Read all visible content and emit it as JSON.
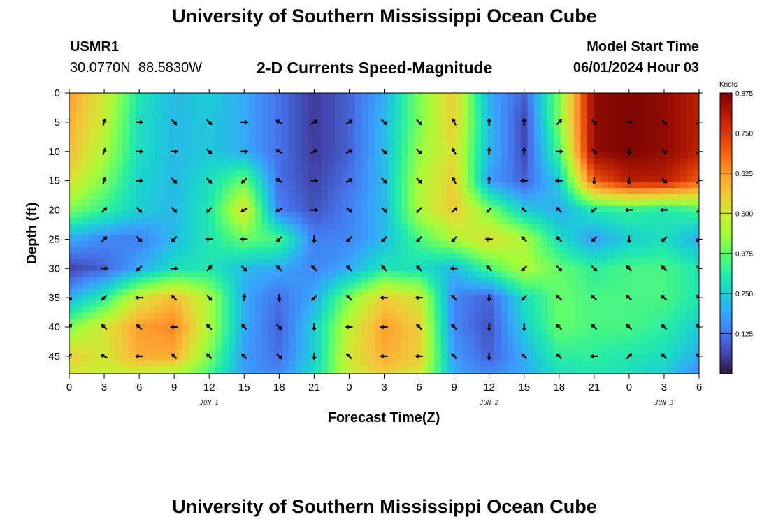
{
  "header": {
    "title": "University of Southern Mississippi Ocean Cube",
    "station_id": "USMR1",
    "coordinates": "30.0770N  88.5830W",
    "subtitle": "2-D Currents Speed-Magnitude",
    "model_start_label": "Model Start Time",
    "model_start_value": "06/01/2024 Hour 03"
  },
  "footer": {
    "title": "University of Southern Mississippi Ocean Cube"
  },
  "chart_data": {
    "type": "heatmap",
    "title": "2-D Currents Speed-Magnitude",
    "xlabel": "Forecast Time(Z)",
    "ylabel": "Depth (ft)",
    "x_range_hours": [
      0,
      54
    ],
    "y_range_ft": [
      0,
      48
    ],
    "x_tick_labels": [
      "0",
      "3",
      "6",
      "9",
      "12",
      "15",
      "18",
      "21",
      "0",
      "3",
      "6",
      "9",
      "12",
      "15",
      "18",
      "21",
      "0",
      "3",
      "6"
    ],
    "y_tick_labels": [
      "0",
      "5",
      "10",
      "15",
      "20",
      "25",
      "30",
      "35",
      "40",
      "45"
    ],
    "y_ticks": [
      0,
      5,
      10,
      15,
      20,
      25,
      30,
      35,
      40,
      45
    ],
    "date_labels": [
      {
        "text": "JUN 1",
        "hour": 12
      },
      {
        "text": "JUN 2",
        "hour": 36
      },
      {
        "text": "JUN 3",
        "hour": 51
      }
    ],
    "colorbar": {
      "unit": "Knots",
      "min": 0,
      "max": 0.875,
      "tick_labels": [
        "0.125",
        "0.250",
        "0.375",
        "0.500",
        "0.625",
        "0.750",
        "0.875"
      ],
      "tick_values": [
        0.125,
        0.25,
        0.375,
        0.5,
        0.625,
        0.75,
        0.875
      ],
      "colormap": [
        "#30123b",
        "#4145ab",
        "#4675ed",
        "#39a2fc",
        "#1bcfd4",
        "#24eca6",
        "#61fc6c",
        "#a4fc3b",
        "#d1e834",
        "#f3c63a",
        "#fe9b2d",
        "#f36315",
        "#d93806",
        "#b11901",
        "#7a0403"
      ]
    },
    "value_unit": "knots",
    "speed_field": {
      "hours": [
        0,
        3,
        6,
        9,
        12,
        15,
        18,
        21,
        24,
        27,
        30,
        33,
        36,
        39,
        42,
        45,
        48,
        51,
        54
      ],
      "depths_ft": [
        0,
        5,
        10,
        15,
        20,
        25,
        30,
        35,
        40,
        45,
        48
      ],
      "values": [
        [
          0.62,
          0.5,
          0.3,
          0.22,
          0.25,
          0.2,
          0.12,
          0.05,
          0.1,
          0.2,
          0.4,
          0.55,
          0.2,
          0.1,
          0.4,
          0.85,
          0.87,
          0.85,
          0.8
        ],
        [
          0.6,
          0.48,
          0.28,
          0.22,
          0.24,
          0.2,
          0.12,
          0.05,
          0.1,
          0.22,
          0.4,
          0.55,
          0.22,
          0.07,
          0.4,
          0.85,
          0.87,
          0.85,
          0.8
        ],
        [
          0.58,
          0.45,
          0.28,
          0.22,
          0.24,
          0.2,
          0.12,
          0.05,
          0.1,
          0.22,
          0.42,
          0.52,
          0.22,
          0.07,
          0.35,
          0.85,
          0.87,
          0.85,
          0.8
        ],
        [
          0.52,
          0.4,
          0.26,
          0.22,
          0.28,
          0.38,
          0.12,
          0.06,
          0.12,
          0.22,
          0.45,
          0.55,
          0.18,
          0.1,
          0.25,
          0.7,
          0.8,
          0.8,
          0.7
        ],
        [
          0.4,
          0.33,
          0.25,
          0.22,
          0.3,
          0.52,
          0.14,
          0.08,
          0.14,
          0.22,
          0.45,
          0.56,
          0.4,
          0.25,
          0.2,
          0.3,
          0.33,
          0.3,
          0.35
        ],
        [
          0.2,
          0.15,
          0.14,
          0.22,
          0.3,
          0.38,
          0.35,
          0.14,
          0.15,
          0.22,
          0.35,
          0.45,
          0.52,
          0.45,
          0.28,
          0.18,
          0.25,
          0.28,
          0.2
        ],
        [
          0.06,
          0.1,
          0.2,
          0.28,
          0.3,
          0.22,
          0.2,
          0.15,
          0.2,
          0.3,
          0.28,
          0.22,
          0.35,
          0.45,
          0.38,
          0.32,
          0.35,
          0.35,
          0.3
        ],
        [
          0.2,
          0.32,
          0.5,
          0.58,
          0.45,
          0.2,
          0.12,
          0.2,
          0.4,
          0.55,
          0.5,
          0.15,
          0.1,
          0.28,
          0.38,
          0.35,
          0.35,
          0.35,
          0.3
        ],
        [
          0.4,
          0.5,
          0.62,
          0.65,
          0.45,
          0.2,
          0.1,
          0.25,
          0.48,
          0.62,
          0.55,
          0.15,
          0.08,
          0.25,
          0.38,
          0.35,
          0.35,
          0.32,
          0.25
        ],
        [
          0.55,
          0.5,
          0.6,
          0.6,
          0.4,
          0.18,
          0.12,
          0.25,
          0.5,
          0.6,
          0.55,
          0.18,
          0.1,
          0.2,
          0.32,
          0.32,
          0.3,
          0.28,
          0.2
        ],
        [
          0.5,
          0.48,
          0.48,
          0.45,
          0.35,
          0.18,
          0.15,
          0.28,
          0.48,
          0.55,
          0.5,
          0.2,
          0.15,
          0.2,
          0.28,
          0.3,
          0.28,
          0.25,
          0.15
        ]
      ]
    },
    "current_vectors": {
      "hours": [
        0,
        3,
        6,
        9,
        12,
        15,
        18,
        21,
        24,
        27,
        30,
        33,
        36,
        39,
        42,
        45,
        48,
        51,
        54
      ],
      "depths_ft": [
        5,
        10,
        15,
        20,
        25,
        30,
        35,
        40,
        45
      ],
      "directions_deg_clockwise_from_east": [
        [
          null,
          -70,
          0,
          45,
          45,
          0,
          -150,
          -30,
          -30,
          45,
          45,
          -120,
          -90,
          -90,
          -45,
          45,
          0,
          45,
          -45
        ],
        [
          null,
          -70,
          0,
          0,
          45,
          0,
          -150,
          -30,
          -30,
          45,
          45,
          -120,
          -90,
          -90,
          0,
          45,
          90,
          45,
          -45
        ],
        [
          null,
          -70,
          0,
          45,
          45,
          135,
          -150,
          0,
          -30,
          45,
          45,
          -120,
          -90,
          180,
          180,
          90,
          90,
          45,
          -45
        ],
        [
          null,
          -45,
          45,
          45,
          135,
          150,
          150,
          0,
          45,
          45,
          135,
          -45,
          135,
          -135,
          -135,
          135,
          180,
          180,
          -45
        ],
        [
          null,
          -45,
          45,
          135,
          180,
          180,
          135,
          90,
          135,
          135,
          135,
          135,
          180,
          -135,
          -135,
          135,
          90,
          135,
          135
        ],
        [
          null,
          0,
          135,
          0,
          -45,
          45,
          -135,
          -135,
          -135,
          -135,
          -135,
          180,
          -135,
          135,
          45,
          45,
          -135,
          -135,
          45
        ],
        [
          45,
          135,
          180,
          -135,
          45,
          -80,
          90,
          135,
          -135,
          180,
          180,
          -135,
          90,
          135,
          -135,
          -135,
          -135,
          -135,
          -135
        ],
        [
          -45,
          -135,
          -135,
          180,
          -135,
          -135,
          45,
          90,
          180,
          180,
          -135,
          -135,
          90,
          90,
          -135,
          -135,
          -135,
          -135,
          -135
        ],
        [
          135,
          -150,
          180,
          -135,
          -135,
          -135,
          45,
          90,
          -135,
          180,
          180,
          -135,
          90,
          -135,
          -135,
          180,
          -45,
          -135,
          -135
        ]
      ]
    }
  }
}
